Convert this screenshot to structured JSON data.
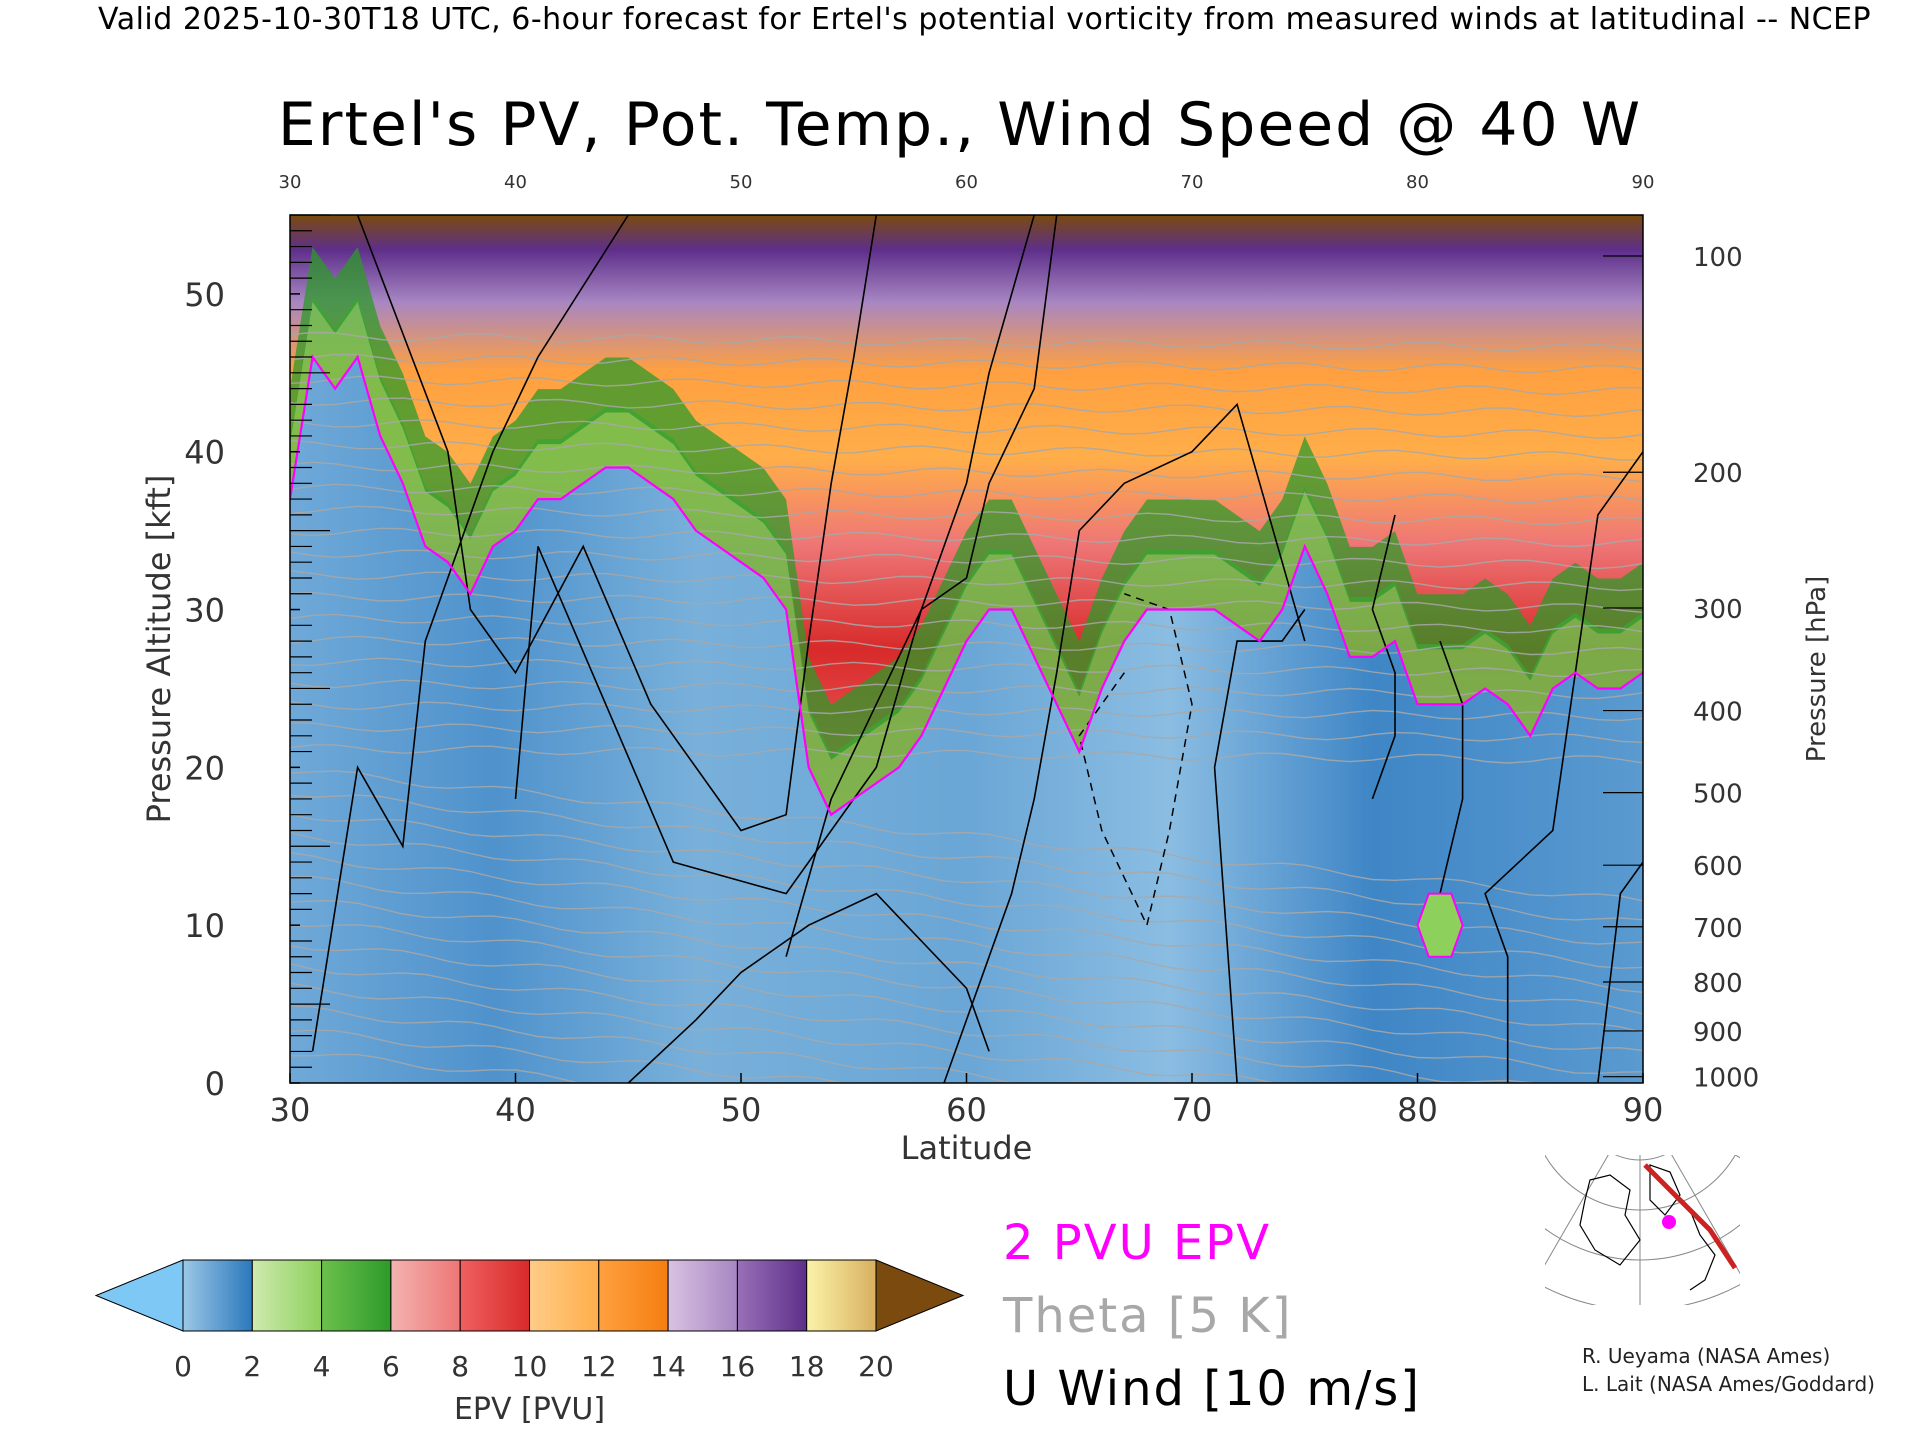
{
  "header": {
    "headline": "Valid 2025-10-30T18 UTC, 6-hour forecast for Ertel's potential vorticity from measured winds at latitudinal -- NCEP",
    "title": "Ertel's PV, Pot. Temp., Wind Speed @ 40 W"
  },
  "legend": {
    "pvu_label": "2 PVU EPV",
    "theta_label": "Theta [5 K]",
    "uwind_label": "U Wind [10 m/s]",
    "colorbar_label": "EPV [PVU]"
  },
  "credits": {
    "line1": "R. Ueyama (NASA Ames)",
    "line2": "L. Lait (NASA Ames/Goddard)"
  },
  "colors": {
    "pvu_contour": "#ff00ff",
    "theta_contour": "#a8a8a8",
    "uwind_contour": "#000000",
    "map_track": "#cc2222",
    "map_marker": "#ff00ff"
  },
  "chart_data": {
    "type": "heatmap",
    "title": "Ertel's PV, Pot. Temp., Wind Speed @ 40 W",
    "xlabel": "Latitude",
    "ylabel": "Pressure Altitude [kft]",
    "y2label": "Pressure [hPa]",
    "xlim": [
      30,
      90
    ],
    "ylim": [
      0,
      55
    ],
    "x_ticks": [
      30,
      40,
      50,
      60,
      70,
      80,
      90
    ],
    "x_ticks_top": [
      30,
      40,
      50,
      60,
      70,
      80,
      90
    ],
    "y_ticks": [
      0,
      10,
      20,
      30,
      40,
      50
    ],
    "pressure_ticks": [
      {
        "hpa": 100,
        "kft": 52.4
      },
      {
        "hpa": 200,
        "kft": 38.7
      },
      {
        "hpa": 300,
        "kft": 30.1
      },
      {
        "hpa": 400,
        "kft": 23.6
      },
      {
        "hpa": 500,
        "kft": 18.4
      },
      {
        "hpa": 600,
        "kft": 13.8
      },
      {
        "hpa": 700,
        "kft": 9.9
      },
      {
        "hpa": 800,
        "kft": 6.4
      },
      {
        "hpa": 900,
        "kft": 3.3
      },
      {
        "hpa": 1000,
        "kft": 0.4
      }
    ],
    "colorbar": {
      "label": "EPV [PVU]",
      "ticks": [
        0,
        2,
        4,
        6,
        8,
        10,
        12,
        14,
        16,
        18,
        20
      ],
      "underflow_color": "#7ec8f6",
      "overflow_color": "#7a4a0e",
      "bins": [
        {
          "from": 0,
          "to": 2,
          "color_low": "#9cc8e6",
          "color_high": "#2a78bc"
        },
        {
          "from": 2,
          "to": 4,
          "color_low": "#cfeab0",
          "color_high": "#8dd05c"
        },
        {
          "from": 4,
          "to": 6,
          "color_low": "#6cc04c",
          "color_high": "#2d9a2a"
        },
        {
          "from": 6,
          "to": 8,
          "color_low": "#f3b3b0",
          "color_high": "#ee7676"
        },
        {
          "from": 8,
          "to": 10,
          "color_low": "#f06060",
          "color_high": "#d82a2a"
        },
        {
          "from": 10,
          "to": 12,
          "color_low": "#ffcc88",
          "color_high": "#ffae4a"
        },
        {
          "from": 12,
          "to": 14,
          "color_low": "#ffa040",
          "color_high": "#f57e10"
        },
        {
          "from": 14,
          "to": 16,
          "color_low": "#d9c2e2",
          "color_high": "#a786c2"
        },
        {
          "from": 16,
          "to": 18,
          "color_low": "#9970b8",
          "color_high": "#5e2f8a"
        },
        {
          "from": 18,
          "to": 20,
          "color_low": "#fbf3a8",
          "color_high": "#d8b060"
        }
      ]
    },
    "tropopause_2pvu": {
      "lat": [
        30,
        31,
        32,
        33,
        34,
        35,
        36,
        37,
        38,
        39,
        40,
        41,
        42,
        43,
        44,
        45,
        46,
        47,
        48,
        49,
        50,
        51,
        52,
        53,
        54,
        55,
        56,
        57,
        58,
        59,
        60,
        61,
        62,
        63,
        64,
        65,
        66,
        67,
        68,
        69,
        70,
        71,
        72,
        73,
        74,
        75,
        76,
        77,
        78,
        79,
        80,
        81,
        82,
        83,
        84,
        85,
        86,
        87,
        88,
        89,
        90
      ],
      "kft": [
        37,
        46,
        44,
        46,
        41,
        38,
        34,
        33,
        31,
        34,
        35,
        37,
        37,
        38,
        39,
        39,
        38,
        37,
        35,
        34,
        33,
        32,
        30,
        20,
        17,
        18,
        19,
        20,
        22,
        25,
        28,
        30,
        30,
        27,
        24,
        21,
        25,
        28,
        30,
        30,
        30,
        30,
        29,
        28,
        30,
        34,
        31,
        27,
        27,
        28,
        24,
        24,
        24,
        25,
        24,
        22,
        25,
        26,
        25,
        25,
        26
      ]
    },
    "label_colors": {
      "uwind_contour_levels": [
        -10,
        0,
        10,
        20,
        30
      ]
    }
  }
}
